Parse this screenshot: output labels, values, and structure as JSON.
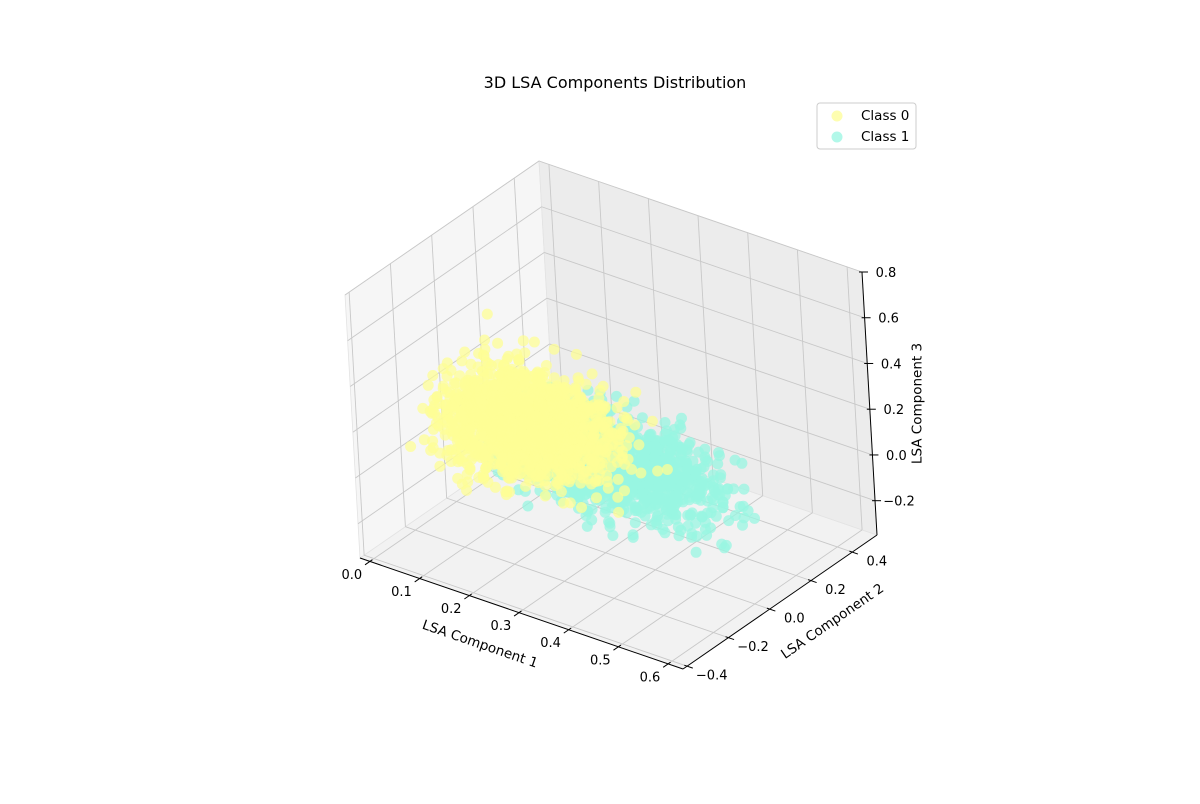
{
  "chart_data": {
    "type": "scatter",
    "projection": "3d",
    "title": "3D LSA Components Distribution",
    "xlabel": "LSA Component 1",
    "ylabel": "LSA Component 2",
    "zlabel": "LSA Component 3",
    "xlim": [
      -0.02,
      0.63
    ],
    "ylim": [
      -0.42,
      0.52
    ],
    "zlim": [
      -0.35,
      0.8
    ],
    "xticks": [
      "0.0",
      "0.1",
      "0.2",
      "0.3",
      "0.4",
      "0.5",
      "0.6"
    ],
    "yticks": [
      "−0.4",
      "−0.2",
      "0.0",
      "0.2",
      "0.4"
    ],
    "zticks": [
      "−0.2",
      "0.0",
      "0.2",
      "0.4",
      "0.6",
      "0.8"
    ],
    "grid": true,
    "legend_position": "top-right",
    "series": [
      {
        "name": "Class 0",
        "color": "#fdfd96",
        "marker_alpha": 0.75,
        "approx_points": 1500,
        "center": [
          0.14,
          0.02,
          0.08
        ],
        "spread": [
          0.08,
          0.09,
          0.09
        ],
        "range_x": [
          0.0,
          0.38
        ],
        "range_y": [
          -0.2,
          0.28
        ],
        "range_z": [
          -0.15,
          0.35
        ]
      },
      {
        "name": "Class 1",
        "color": "#98f5e1",
        "marker_alpha": 0.75,
        "approx_points": 1100,
        "center": [
          0.3,
          0.08,
          -0.02
        ],
        "spread": [
          0.1,
          0.08,
          0.08
        ],
        "range_x": [
          0.1,
          0.55
        ],
        "range_y": [
          -0.15,
          0.4
        ],
        "range_z": [
          -0.25,
          0.18
        ]
      }
    ]
  }
}
